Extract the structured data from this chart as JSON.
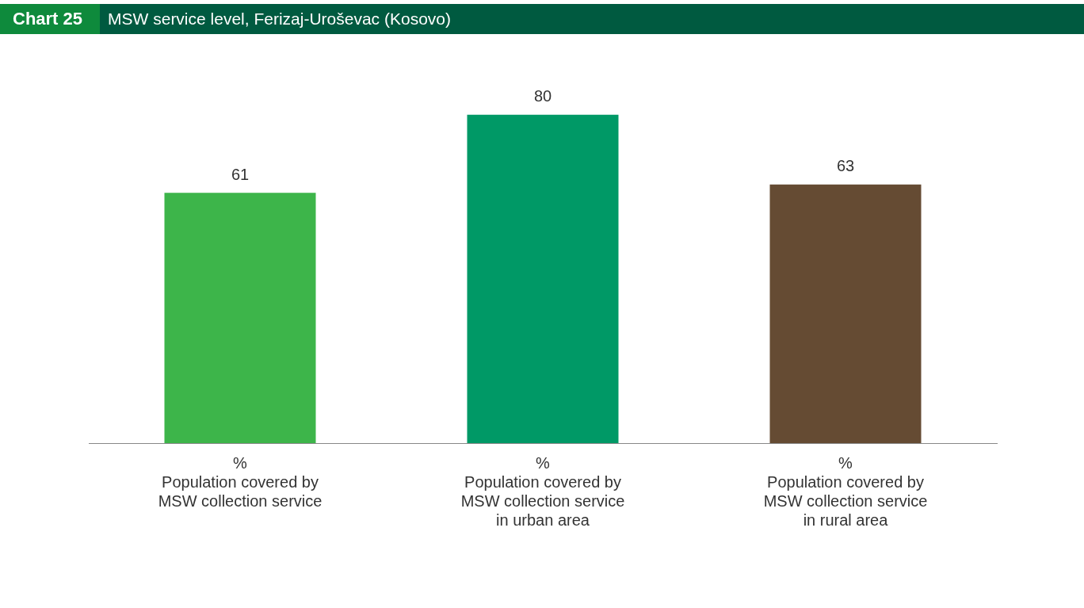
{
  "chart_data": {
    "type": "bar",
    "title": "MSW service level, Ferizaj-Uroševac (Kosovo)",
    "annotations": [
      "Chart 25"
    ],
    "categories": [
      "%\nPopulation covered by\nMSW collection service",
      "%\nPopulation covered by\nMSW collection service\nin urban area",
      "%\nPopulation covered by\nMSW collection service\nin rural area"
    ],
    "values": [
      61,
      80,
      63
    ],
    "colors": [
      "#3db54a",
      "#009966",
      "#654b33"
    ],
    "data_labels": true,
    "grid": false,
    "legend": false
  }
}
